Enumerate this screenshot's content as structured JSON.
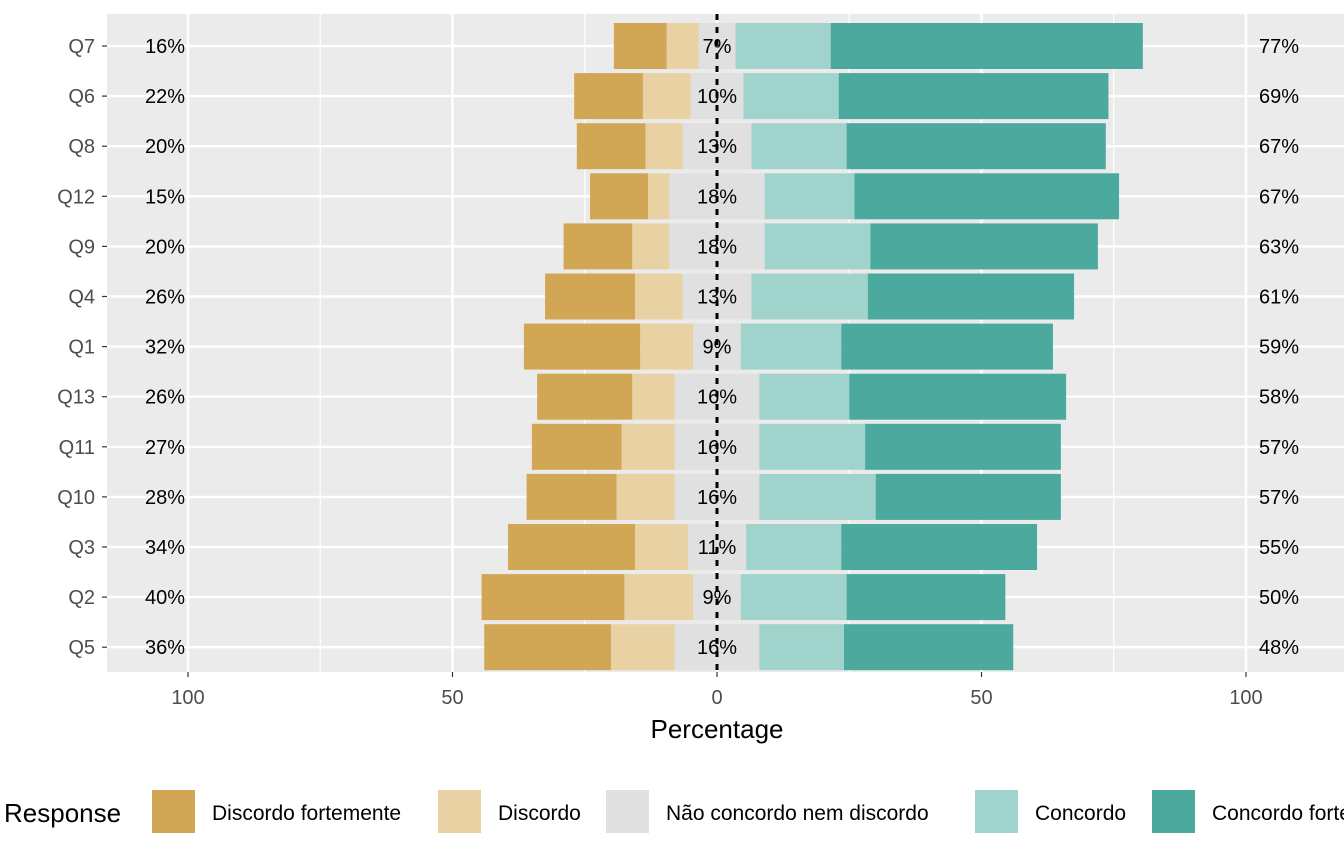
{
  "chart_data": {
    "type": "bar",
    "subtype": "diverging-stacked-horizontal",
    "xlabel": "Percentage",
    "ylabel": "",
    "xlim": [
      -100,
      100
    ],
    "x_ticks": [
      {
        "value": -100,
        "label": "100"
      },
      {
        "value": -50,
        "label": "50"
      },
      {
        "value": 0,
        "label": "0"
      },
      {
        "value": 50,
        "label": "50"
      },
      {
        "value": 100,
        "label": "100"
      }
    ],
    "grid": true,
    "legend": {
      "title": "Response",
      "position": "bottom",
      "entries": [
        {
          "name": "Discordo fortemente",
          "color": "#D1A755"
        },
        {
          "name": "Discordo",
          "color": "#E8D2A3"
        },
        {
          "name": "Não concordo nem discordo",
          "color": "#E0E0E0"
        },
        {
          "name": "Concordo",
          "color": "#A0D3CB"
        },
        {
          "name": "Concordo fortemente",
          "color": "#4BA99D"
        }
      ]
    },
    "categories": [
      "Q7",
      "Q6",
      "Q8",
      "Q12",
      "Q9",
      "Q4",
      "Q1",
      "Q13",
      "Q11",
      "Q10",
      "Q3",
      "Q2",
      "Q5"
    ],
    "series": [
      {
        "name": "Discordo fortemente",
        "values": [
          10,
          13,
          13,
          11,
          13,
          17,
          22,
          18,
          17,
          17,
          24,
          27,
          24
        ]
      },
      {
        "name": "Discordo",
        "values": [
          6,
          9,
          7,
          4,
          7,
          9,
          10,
          8,
          10,
          11,
          10,
          13,
          12
        ]
      },
      {
        "name": "Não concordo nem discordo",
        "values": [
          7,
          10,
          13,
          18,
          18,
          13,
          9,
          16,
          16,
          16,
          11,
          9,
          16
        ]
      },
      {
        "name": "Concordo",
        "values": [
          18,
          18,
          18,
          17,
          20,
          22,
          19,
          17,
          20,
          22,
          18,
          20,
          16
        ]
      },
      {
        "name": "Concordo fortemente",
        "values": [
          59,
          51,
          49,
          50,
          43,
          39,
          40,
          41,
          37,
          35,
          37,
          30,
          32
        ]
      }
    ],
    "left_labels": [
      "16%",
      "22%",
      "20%",
      "15%",
      "20%",
      "26%",
      "32%",
      "26%",
      "27%",
      "28%",
      "34%",
      "40%",
      "36%"
    ],
    "center_labels": [
      "7%",
      "10%",
      "13%",
      "18%",
      "18%",
      "13%",
      "9%",
      "16%",
      "16%",
      "16%",
      "11%",
      "9%",
      "16%"
    ],
    "right_labels": [
      "77%",
      "69%",
      "67%",
      "67%",
      "63%",
      "61%",
      "59%",
      "58%",
      "57%",
      "57%",
      "55%",
      "50%",
      "48%"
    ]
  }
}
